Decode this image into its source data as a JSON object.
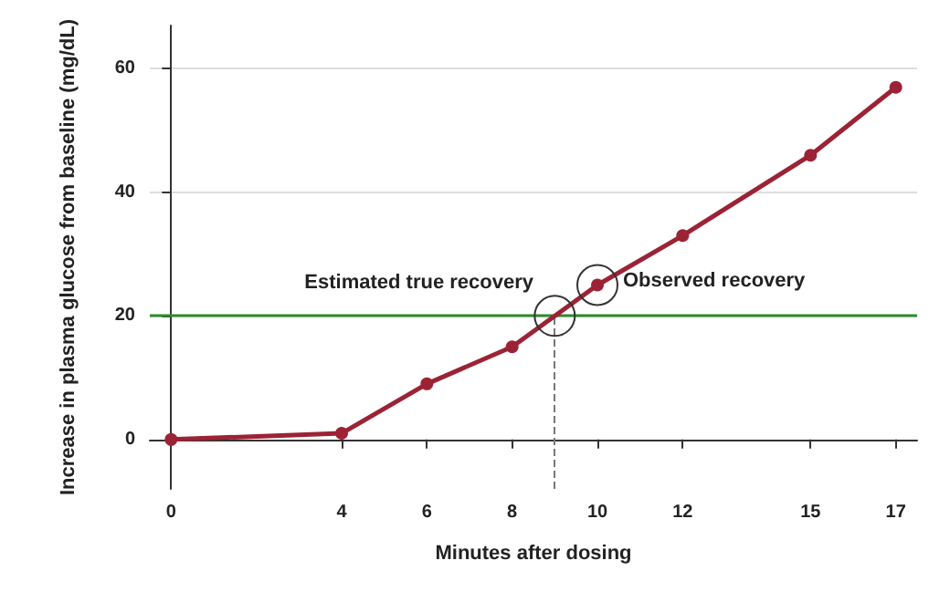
{
  "chart_data": {
    "type": "line",
    "xlabel": "Minutes after dosing",
    "ylabel": "Increase in plasma glucose from baseline (mg/dL)",
    "x": [
      0,
      4,
      6,
      8,
      10,
      12,
      15,
      17
    ],
    "series": [
      {
        "color": "#9b2335",
        "values": [
          0,
          1,
          9,
          15,
          25,
          33,
          46,
          57
        ]
      }
    ],
    "xlim": [
      -0.5,
      17.5
    ],
    "xticks": [
      0,
      4,
      6,
      8,
      10,
      12,
      15,
      17
    ],
    "ylim": [
      -8,
      67
    ],
    "yticks": [
      0,
      20,
      40,
      60
    ],
    "grid": "y",
    "marker": "circle",
    "line_style": "solid",
    "ref_lines": [
      {
        "axis": "y",
        "value": 20,
        "color": "#2e8b2e",
        "line_style": "solid"
      },
      {
        "axis": "x",
        "value": 9,
        "color": "#777777",
        "line_style": "dashed"
      }
    ],
    "annotations": [
      {
        "text": "Estimated true recovery",
        "x": 9,
        "y": 20
      },
      {
        "text": "Observed recovery",
        "x": 10,
        "y": 25
      }
    ]
  }
}
